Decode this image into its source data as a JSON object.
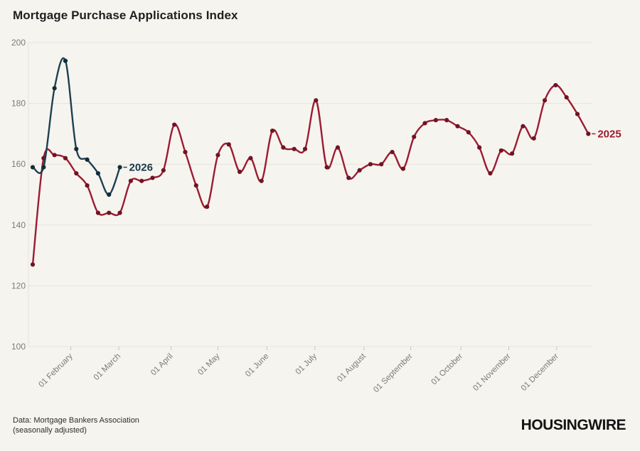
{
  "header": {
    "title": "Mortgage Purchase Applications Index"
  },
  "footer": {
    "source_line1": "Data: Mortgage Bankers Association",
    "source_line2": "(seasonally adjusted)",
    "logo_text": "HOUSINGWIRE"
  },
  "colors": {
    "background": "#f6f4ee",
    "grid": "#e5e3dc",
    "axis_text": "#7d7b75",
    "series_2025": "#9a1c33",
    "series_2025_marker": "#701425",
    "series_2026": "#1d4152",
    "series_2026_marker": "#122c38",
    "label_2026": "#16374a"
  },
  "chart_data": {
    "type": "line",
    "title": "Mortgage Purchase Applications Index",
    "xlabel": "",
    "ylabel": "",
    "ylim": [
      100,
      200
    ],
    "y_ticks": [
      200,
      180,
      160,
      140,
      120,
      100
    ],
    "grid": "horizontal",
    "legend_position": "inline-end-labels",
    "x_unit": "weekly index, Jan-Dec",
    "x_ticks": [
      {
        "label": "01 February",
        "week": 3.5
      },
      {
        "label": "01 March",
        "week": 7.9
      },
      {
        "label": "01 April",
        "week": 12.7
      },
      {
        "label": "01 May",
        "week": 17.0
      },
      {
        "label": "01 June",
        "week": 21.5
      },
      {
        "label": "01 July",
        "week": 25.9
      },
      {
        "label": "01 August",
        "week": 30.4
      },
      {
        "label": "01 September",
        "week": 34.7
      },
      {
        "label": "01 October",
        "week": 39.3
      },
      {
        "label": "01 November",
        "week": 43.7
      },
      {
        "label": "01 December",
        "week": 48.1
      }
    ],
    "series": [
      {
        "name": "2025",
        "color": "#9a1c33",
        "marker_color": "#701425",
        "label_color": "#9a1c33",
        "start_week": 0,
        "values": [
          127,
          162,
          163,
          162,
          157,
          153,
          144,
          144,
          144,
          154.5,
          154.5,
          155.5,
          158,
          173,
          164,
          153,
          146,
          163,
          166.5,
          157.5,
          162,
          154.5,
          171,
          165.5,
          165,
          165,
          181,
          159,
          165.5,
          155.5,
          158,
          160,
          160,
          164,
          158.5,
          169,
          173.5,
          174.5,
          174.5,
          172.5,
          170.5,
          165.5,
          157,
          164.5,
          163.5,
          172.5,
          168.5,
          181,
          186,
          182,
          176.5,
          170
        ]
      },
      {
        "name": "2026",
        "color": "#1d4152",
        "marker_color": "#122c38",
        "label_color": "#16374a",
        "start_week": 0,
        "values": [
          159,
          159,
          185,
          194,
          165,
          161.5,
          157,
          150,
          159
        ]
      }
    ]
  }
}
